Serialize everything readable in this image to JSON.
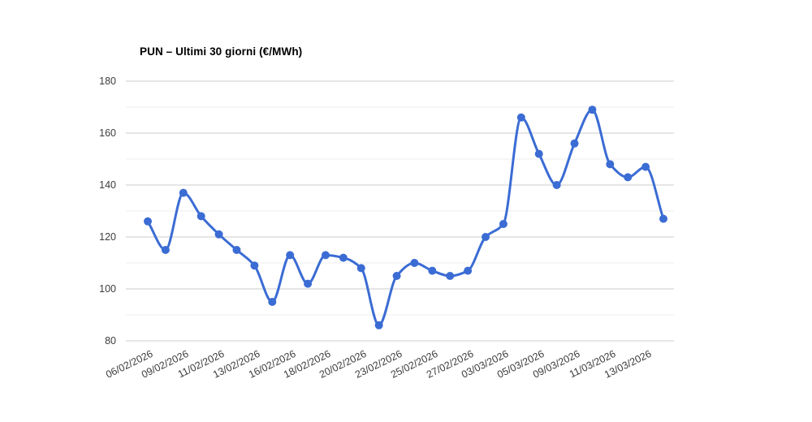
{
  "chart_data": {
    "type": "line",
    "title": "PUN – Ultimi 30 giorni (€/MWh)",
    "x_tick_labels": [
      "06/02/2026",
      "09/02/2026",
      "11/02/2026",
      "13/02/2026",
      "16/02/2026",
      "18/02/2026",
      "20/02/2026",
      "23/02/2026",
      "25/02/2026",
      "27/02/2026",
      "03/03/2026",
      "05/03/2026",
      "09/03/2026",
      "11/03/2026",
      "13/03/2026"
    ],
    "x_label_every": 2,
    "values": [
      126,
      115,
      137,
      128,
      121,
      115,
      109,
      95,
      113,
      102,
      113,
      112,
      108,
      86,
      105,
      110,
      107,
      105,
      107,
      120,
      125,
      166,
      152,
      140,
      156,
      169,
      148,
      143,
      147,
      127
    ],
    "xlabel": "",
    "ylabel": "",
    "ylim": [
      80,
      180
    ],
    "y_major_ticks": [
      80,
      100,
      120,
      140,
      160,
      180
    ],
    "y_minor_ticks": [
      90,
      110,
      130,
      150,
      170
    ],
    "grid": "horizontal-only",
    "legend_position": "none",
    "marker": "circle",
    "curve": "smooth"
  },
  "colors": {
    "series": "#3b6cd4",
    "grid_major": "#cccccc",
    "grid_minor": "#ececec",
    "axis_label": "#3c3c3c",
    "title": "#000000",
    "background": "#ffffff"
  }
}
